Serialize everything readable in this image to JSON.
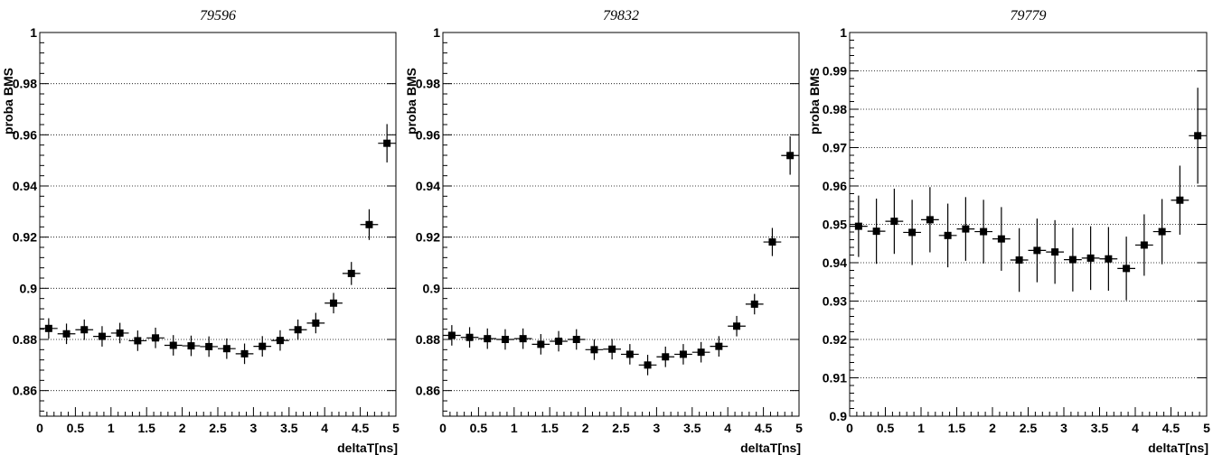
{
  "chart_data": [
    {
      "type": "scatter",
      "title": "79596",
      "xlabel": "deltaT[ns]",
      "ylabel": "proba BMS",
      "xlim": [
        0,
        5
      ],
      "ylim": [
        0.85,
        1
      ],
      "grid": "horizontal",
      "x_ticks": [
        "0",
        "0.5",
        "1",
        "1.5",
        "2",
        "2.5",
        "3",
        "3.5",
        "4",
        "4.5",
        "5"
      ],
      "y_ticks": [
        "0.86",
        "0.88",
        "0.9",
        "0.92",
        "0.94",
        "0.96",
        "0.98",
        "1"
      ],
      "x_half_width": 0.125,
      "points": [
        {
          "x": 0.125,
          "y": 0.8843,
          "err": 0.004
        },
        {
          "x": 0.375,
          "y": 0.8822,
          "err": 0.004
        },
        {
          "x": 0.625,
          "y": 0.8838,
          "err": 0.004
        },
        {
          "x": 0.875,
          "y": 0.8812,
          "err": 0.004
        },
        {
          "x": 1.125,
          "y": 0.8825,
          "err": 0.004
        },
        {
          "x": 1.375,
          "y": 0.8795,
          "err": 0.004
        },
        {
          "x": 1.625,
          "y": 0.8806,
          "err": 0.004
        },
        {
          "x": 1.875,
          "y": 0.8777,
          "err": 0.004
        },
        {
          "x": 2.125,
          "y": 0.8775,
          "err": 0.004
        },
        {
          "x": 2.375,
          "y": 0.8772,
          "err": 0.004
        },
        {
          "x": 2.625,
          "y": 0.8764,
          "err": 0.004
        },
        {
          "x": 2.875,
          "y": 0.8744,
          "err": 0.004
        },
        {
          "x": 3.125,
          "y": 0.8773,
          "err": 0.004
        },
        {
          "x": 3.375,
          "y": 0.8796,
          "err": 0.004
        },
        {
          "x": 3.625,
          "y": 0.8838,
          "err": 0.004
        },
        {
          "x": 3.875,
          "y": 0.8864,
          "err": 0.004
        },
        {
          "x": 4.125,
          "y": 0.8942,
          "err": 0.004
        },
        {
          "x": 4.375,
          "y": 0.9058,
          "err": 0.0045
        },
        {
          "x": 4.625,
          "y": 0.9249,
          "err": 0.006
        },
        {
          "x": 4.875,
          "y": 0.9567,
          "err": 0.0075
        }
      ]
    },
    {
      "type": "scatter",
      "title": "79832",
      "xlabel": "deltaT[ns]",
      "ylabel": "proba BMS",
      "xlim": [
        0,
        5
      ],
      "ylim": [
        0.85,
        1
      ],
      "grid": "horizontal",
      "x_ticks": [
        "0",
        "0.5",
        "1",
        "1.5",
        "2",
        "2.5",
        "3",
        "3.5",
        "4",
        "4.5",
        "5"
      ],
      "y_ticks": [
        "0.86",
        "0.88",
        "0.9",
        "0.92",
        "0.94",
        "0.96",
        "0.98",
        "1"
      ],
      "x_half_width": 0.125,
      "points": [
        {
          "x": 0.125,
          "y": 0.8816,
          "err": 0.004
        },
        {
          "x": 0.375,
          "y": 0.8808,
          "err": 0.004
        },
        {
          "x": 0.625,
          "y": 0.8803,
          "err": 0.004
        },
        {
          "x": 0.875,
          "y": 0.88,
          "err": 0.004
        },
        {
          "x": 1.125,
          "y": 0.8803,
          "err": 0.004
        },
        {
          "x": 1.375,
          "y": 0.8781,
          "err": 0.004
        },
        {
          "x": 1.625,
          "y": 0.8793,
          "err": 0.004
        },
        {
          "x": 1.875,
          "y": 0.88,
          "err": 0.004
        },
        {
          "x": 2.125,
          "y": 0.876,
          "err": 0.004
        },
        {
          "x": 2.375,
          "y": 0.8762,
          "err": 0.004
        },
        {
          "x": 2.625,
          "y": 0.8742,
          "err": 0.004
        },
        {
          "x": 2.875,
          "y": 0.87,
          "err": 0.004
        },
        {
          "x": 3.125,
          "y": 0.8732,
          "err": 0.004
        },
        {
          "x": 3.375,
          "y": 0.8742,
          "err": 0.004
        },
        {
          "x": 3.625,
          "y": 0.875,
          "err": 0.004
        },
        {
          "x": 3.875,
          "y": 0.8773,
          "err": 0.004
        },
        {
          "x": 4.125,
          "y": 0.8852,
          "err": 0.004
        },
        {
          "x": 4.375,
          "y": 0.8938,
          "err": 0.004
        },
        {
          "x": 4.625,
          "y": 0.9181,
          "err": 0.0055
        },
        {
          "x": 4.875,
          "y": 0.9519,
          "err": 0.0075
        }
      ]
    },
    {
      "type": "scatter",
      "title": "79779",
      "xlabel": "deltaT[ns]",
      "ylabel": "proba BMS",
      "xlim": [
        0,
        5
      ],
      "ylim": [
        0.9,
        1
      ],
      "grid": "horizontal",
      "x_ticks": [
        "0",
        "0.5",
        "1",
        "1.5",
        "2",
        "2.5",
        "3",
        "3.5",
        "4",
        "4.5",
        "5"
      ],
      "y_ticks": [
        "0.9",
        "0.91",
        "0.92",
        "0.93",
        "0.94",
        "0.95",
        "0.96",
        "0.97",
        "0.98",
        "0.99",
        "1"
      ],
      "x_half_width": 0.125,
      "points": [
        {
          "x": 0.125,
          "y": 0.9495,
          "err": 0.008
        },
        {
          "x": 0.375,
          "y": 0.9482,
          "err": 0.0085
        },
        {
          "x": 0.625,
          "y": 0.9508,
          "err": 0.0085
        },
        {
          "x": 0.875,
          "y": 0.9479,
          "err": 0.0085
        },
        {
          "x": 1.125,
          "y": 0.9512,
          "err": 0.0085
        },
        {
          "x": 1.375,
          "y": 0.9471,
          "err": 0.0083
        },
        {
          "x": 1.625,
          "y": 0.9488,
          "err": 0.0083
        },
        {
          "x": 1.875,
          "y": 0.9481,
          "err": 0.0083
        },
        {
          "x": 2.125,
          "y": 0.9462,
          "err": 0.0083
        },
        {
          "x": 2.375,
          "y": 0.9407,
          "err": 0.0083
        },
        {
          "x": 2.625,
          "y": 0.9432,
          "err": 0.0083
        },
        {
          "x": 2.875,
          "y": 0.9428,
          "err": 0.0083
        },
        {
          "x": 3.125,
          "y": 0.9408,
          "err": 0.0083
        },
        {
          "x": 3.375,
          "y": 0.9412,
          "err": 0.0083
        },
        {
          "x": 3.625,
          "y": 0.941,
          "err": 0.0083
        },
        {
          "x": 3.875,
          "y": 0.9385,
          "err": 0.0083
        },
        {
          "x": 4.125,
          "y": 0.9446,
          "err": 0.008
        },
        {
          "x": 4.375,
          "y": 0.9481,
          "err": 0.0085
        },
        {
          "x": 4.625,
          "y": 0.9563,
          "err": 0.009
        },
        {
          "x": 4.875,
          "y": 0.9731,
          "err": 0.0125
        }
      ]
    }
  ]
}
